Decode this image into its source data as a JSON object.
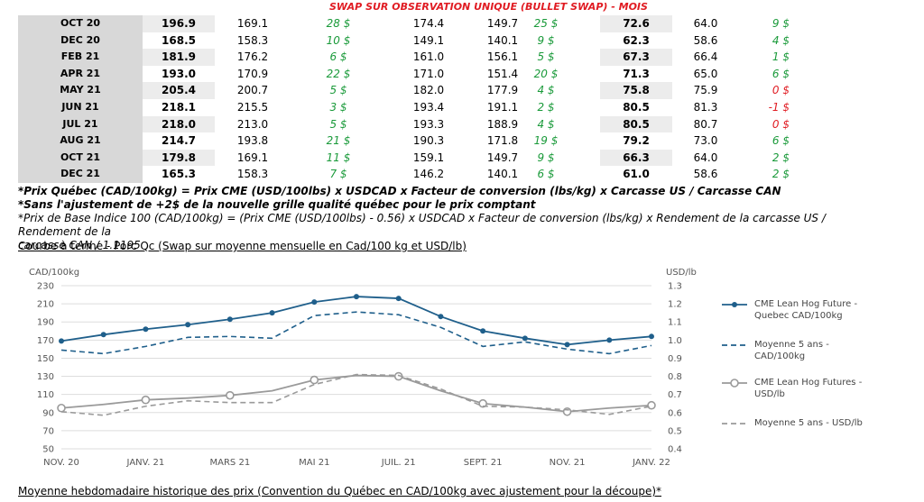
{
  "header": {
    "title": "SWAP SUR OBSERVATION UNIQUE (BULLET SWAP) - MOIS"
  },
  "table": {
    "rows": [
      {
        "month": "OCT 20",
        "c1": "196.9",
        "c2": "169.1",
        "c3": "28 $",
        "c4": "174.4",
        "c5": "149.7",
        "c6": "25 $",
        "c7": "72.6",
        "c8": "64.0",
        "c9": "9 $"
      },
      {
        "month": "DEC 20",
        "c1": "168.5",
        "c2": "158.3",
        "c3": "10 $",
        "c4": "149.1",
        "c5": "140.1",
        "c6": "9 $",
        "c7": "62.3",
        "c8": "58.6",
        "c9": "4 $"
      },
      {
        "month": "FEB 21",
        "c1": "181.9",
        "c2": "176.2",
        "c3": "6 $",
        "c4": "161.0",
        "c5": "156.1",
        "c6": "5 $",
        "c7": "67.3",
        "c8": "66.4",
        "c9": "1 $"
      },
      {
        "month": "APR 21",
        "c1": "193.0",
        "c2": "170.9",
        "c3": "22 $",
        "c4": "171.0",
        "c5": "151.4",
        "c6": "20 $",
        "c7": "71.3",
        "c8": "65.0",
        "c9": "6 $"
      },
      {
        "month": "MAY 21",
        "c1": "205.4",
        "c2": "200.7",
        "c3": "5 $",
        "c4": "182.0",
        "c5": "177.9",
        "c6": "4 $",
        "c7": "75.8",
        "c8": "75.9",
        "c9": "0 $",
        "neg": true
      },
      {
        "month": "JUN 21",
        "c1": "218.1",
        "c2": "215.5",
        "c3": "3 $",
        "c4": "193.4",
        "c5": "191.1",
        "c6": "2 $",
        "c7": "80.5",
        "c8": "81.3",
        "c9": "-1 $",
        "neg": true
      },
      {
        "month": "JUL 21",
        "c1": "218.0",
        "c2": "213.0",
        "c3": "5 $",
        "c4": "193.3",
        "c5": "188.9",
        "c6": "4 $",
        "c7": "80.5",
        "c8": "80.7",
        "c9": "0 $",
        "neg": true
      },
      {
        "month": "AUG 21",
        "c1": "214.7",
        "c2": "193.8",
        "c3": "21 $",
        "c4": "190.3",
        "c5": "171.8",
        "c6": "19 $",
        "c7": "79.2",
        "c8": "73.0",
        "c9": "6 $"
      },
      {
        "month": "OCT 21",
        "c1": "179.8",
        "c2": "169.1",
        "c3": "11 $",
        "c4": "159.1",
        "c5": "149.7",
        "c6": "9 $",
        "c7": "66.3",
        "c8": "64.0",
        "c9": "2 $"
      },
      {
        "month": "DEC 21",
        "c1": "165.3",
        "c2": "158.3",
        "c3": "7 $",
        "c4": "146.2",
        "c5": "140.1",
        "c6": "6 $",
        "c7": "61.0",
        "c8": "58.6",
        "c9": "2 $"
      }
    ]
  },
  "notes": {
    "n1": "*Prix Québec (CAD/100kg) = Prix CME (USD/100lbs) x USDCAD x Facteur de conversion (lbs/kg) x Carcasse US / Carcasse CAN",
    "n2": "*Sans l'ajustement de +2$ de la nouvelle grille qualité québec pour le prix comptant",
    "n3": "*Prix de Base Indice 100 (CAD/100kg) = (Prix CME (USD/100lbs) - 0.56) x USDCAD x Facteur de conversion (lbs/kg) x Rendement de la carcasse US / Rendement de la",
    "n4": "carcasse CAN / 1.1195"
  },
  "section1": {
    "title": "Courbe à terme - Porc Qc (Swap sur moyenne mensuelle en Cad/100 kg et USD/lb)"
  },
  "section2": {
    "title": "Moyenne hebdomadaire historique des prix (Convention du Québec en CAD/100kg avec ajustement pour la découpe)*"
  },
  "chart_data": {
    "type": "line",
    "x": [
      "NOV. 20",
      "DEC. 20",
      "JANV. 21",
      "FEV. 21",
      "MARS 21",
      "AVR. 21",
      "MAI 21",
      "JUIN 21",
      "JUIL. 21",
      "AOUT 21",
      "SEPT. 21",
      "OCT. 21",
      "NOV. 21",
      "DEC. 21",
      "JANV. 22"
    ],
    "x_tick_labels": [
      "NOV. 20",
      "JANV. 21",
      "MARS 21",
      "MAI 21",
      "JUIL. 21",
      "SEPT. 21",
      "NOV. 21",
      "JANV. 22"
    ],
    "ylabel_left": "CAD/100kg",
    "ylabel_right": "USD/lb",
    "ylim_left": [
      50,
      230
    ],
    "ylim_right": [
      0.4,
      1.3
    ],
    "yticks_left": [
      "50",
      "70",
      "90",
      "110",
      "130",
      "150",
      "170",
      "190",
      "210",
      "230"
    ],
    "yticks_right": [
      "0.4",
      "0.5",
      "0.6",
      "0.7",
      "0.8",
      "0.9",
      "1.0",
      "1.1",
      "1.2",
      "1.3"
    ],
    "series": [
      {
        "name": "CME Lean Hog Future - Quebec CAD/100kg",
        "axis": "left",
        "style": "solid-marker",
        "color": "#1f5f8b",
        "values": [
          169,
          176,
          182,
          187,
          193,
          200,
          212,
          218,
          216,
          196,
          180,
          172,
          165,
          170,
          174
        ]
      },
      {
        "name": "Moyenne 5 ans - CAD/100kg",
        "axis": "left",
        "style": "dashed",
        "color": "#1f5f8b",
        "values": [
          159,
          155,
          163,
          173,
          174,
          172,
          197,
          201,
          198,
          184,
          163,
          168,
          160,
          155,
          164
        ]
      },
      {
        "name": "CME Lean Hog Futures - USD/lb",
        "axis": "right",
        "style": "solid-open-marker",
        "color": "#9a9a9a",
        "values": [
          0.625,
          0.645,
          0.67,
          0.68,
          0.695,
          0.72,
          0.78,
          0.805,
          0.8,
          0.72,
          0.65,
          0.63,
          0.605,
          0.625,
          0.64
        ]
      },
      {
        "name": "Moyenne 5 ans - USD/lb",
        "axis": "right",
        "style": "dashed",
        "color": "#9a9a9a",
        "values": [
          0.605,
          0.585,
          0.635,
          0.665,
          0.655,
          0.655,
          0.755,
          0.81,
          0.805,
          0.73,
          0.635,
          0.63,
          0.615,
          0.59,
          0.635
        ]
      }
    ],
    "legend": "right",
    "grid": true
  }
}
